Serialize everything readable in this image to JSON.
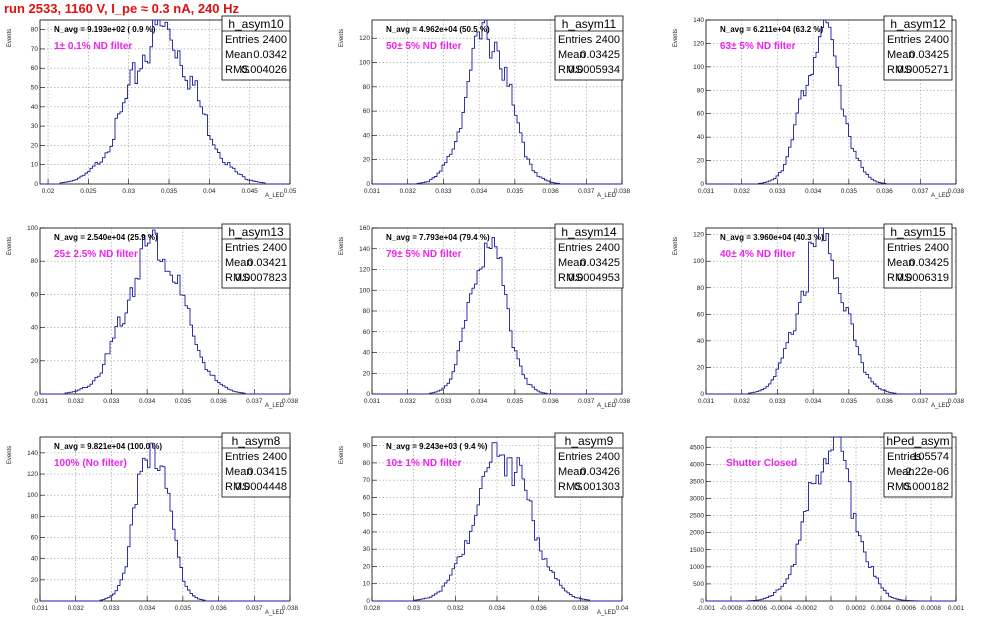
{
  "page_title": "run 2533,  1160 V, I_pe ≈ 0.3 nA, 240 Hz",
  "colors": {
    "histogram": "#1a1aa0",
    "filter_text": "#ee22ee",
    "title": "#e01010",
    "grid": "#9a9a9a"
  },
  "chart_data": [
    {
      "type": "histogram",
      "title": "h_asym10",
      "entries": "2400",
      "mean": "0.0342",
      "rms": "0.004026",
      "n_avg": "N_avg = 9.193e+02 ( 0.9 %)",
      "annotation": "1± 0.1% ND filter",
      "ylabel": "Events",
      "xlabel": "A_LED",
      "xlim": [
        0.019,
        0.05
      ],
      "ylim": [
        0,
        85
      ],
      "xticks": [
        "0.02",
        "0.025",
        "0.03",
        "0.035",
        "0.04",
        "0.045",
        "0.05"
      ],
      "xtick_values": [
        0.02,
        0.025,
        0.03,
        0.035,
        0.04,
        0.045,
        0.05
      ],
      "yticks": [
        0,
        10,
        20,
        30,
        40,
        50,
        60,
        70,
        80
      ],
      "peak_x": 0.0342,
      "peak_y": 80,
      "sigma": 0.004026
    },
    {
      "type": "histogram",
      "title": "h_asym11",
      "entries": "2400",
      "mean": "0.03425",
      "rms": "0.0005934",
      "n_avg": "N_avg = 4.962e+04 (50.5 %)",
      "annotation": "50± 5% ND filter",
      "ylabel": "Events",
      "xlabel": "A_LED",
      "xlim": [
        0.031,
        0.038
      ],
      "ylim": [
        0,
        135
      ],
      "xticks": [
        "0.031",
        "0.032",
        "0.033",
        "0.034",
        "0.035",
        "0.036",
        "0.037",
        "0.038"
      ],
      "xtick_values": [
        0.031,
        0.032,
        0.033,
        0.034,
        0.035,
        0.036,
        0.037,
        0.038
      ],
      "yticks": [
        0,
        20,
        40,
        60,
        80,
        100,
        120
      ],
      "peak_x": 0.03425,
      "peak_y": 125,
      "sigma": 0.0005934
    },
    {
      "type": "histogram",
      "title": "h_asym12",
      "entries": "2400",
      "mean": "0.03425",
      "rms": "0.0005271",
      "n_avg": "N_avg = 6.211e+04 (63.2 %)",
      "annotation": "63± 5% ND filter",
      "ylabel": "Events",
      "xlabel": "A_LED",
      "xlim": [
        0.031,
        0.038
      ],
      "ylim": [
        0,
        140
      ],
      "xticks": [
        "0.031",
        "0.032",
        "0.033",
        "0.034",
        "0.035",
        "0.036",
        "0.037",
        "0.038"
      ],
      "xtick_values": [
        0.031,
        0.032,
        0.033,
        0.034,
        0.035,
        0.036,
        0.037,
        0.038
      ],
      "yticks": [
        0,
        20,
        40,
        60,
        80,
        100,
        120,
        140
      ],
      "peak_x": 0.03425,
      "peak_y": 128,
      "sigma": 0.0005271
    },
    {
      "type": "histogram",
      "title": "h_asym13",
      "entries": "2400",
      "mean": "0.03421",
      "rms": "0.0007823",
      "n_avg": "N_avg = 2.540e+04 (25.9 %)",
      "annotation": "25± 2.5% ND filter",
      "ylabel": "Events",
      "xlabel": "A_LED",
      "xlim": [
        0.031,
        0.038
      ],
      "ylim": [
        0,
        100
      ],
      "xticks": [
        "0.031",
        "0.032",
        "0.033",
        "0.034",
        "0.035",
        "0.036",
        "0.037",
        "0.038"
      ],
      "xtick_values": [
        0.031,
        0.032,
        0.033,
        0.034,
        0.035,
        0.036,
        0.037,
        0.038
      ],
      "yticks": [
        0,
        20,
        40,
        60,
        80,
        100
      ],
      "peak_x": 0.03421,
      "peak_y": 92,
      "sigma": 0.0007823
    },
    {
      "type": "histogram",
      "title": "h_asym14",
      "entries": "2400",
      "mean": "0.03425",
      "rms": "0.0004953",
      "n_avg": "N_avg = 7.793e+04 (79.4 %)",
      "annotation": "79± 5% ND filter",
      "ylabel": "Events",
      "xlabel": "A_LED",
      "xlim": [
        0.031,
        0.038
      ],
      "ylim": [
        0,
        160
      ],
      "xticks": [
        "0.031",
        "0.032",
        "0.033",
        "0.034",
        "0.035",
        "0.036",
        "0.037",
        "0.038"
      ],
      "xtick_values": [
        0.031,
        0.032,
        0.033,
        0.034,
        0.035,
        0.036,
        0.037,
        0.038
      ],
      "yticks": [
        0,
        20,
        40,
        60,
        80,
        100,
        120,
        140,
        160
      ],
      "peak_x": 0.03425,
      "peak_y": 150,
      "sigma": 0.0004953
    },
    {
      "type": "histogram",
      "title": "h_asym15",
      "entries": "2400",
      "mean": "0.03425",
      "rms": "0.0006319",
      "n_avg": "N_avg = 3.960e+04 (40.3 %)",
      "annotation": "40± 4% ND filter",
      "ylabel": "Events",
      "xlabel": "A_LED",
      "xlim": [
        0.031,
        0.038
      ],
      "ylim": [
        0,
        125
      ],
      "xticks": [
        "0.031",
        "0.032",
        "0.033",
        "0.034",
        "0.035",
        "0.036",
        "0.037",
        "0.038"
      ],
      "xtick_values": [
        0.031,
        0.032,
        0.033,
        0.034,
        0.035,
        0.036,
        0.037,
        0.038
      ],
      "yticks": [
        0,
        20,
        40,
        60,
        80,
        100,
        120
      ],
      "peak_x": 0.03425,
      "peak_y": 115,
      "sigma": 0.0006319
    },
    {
      "type": "histogram",
      "title": "h_asym8",
      "entries": "2400",
      "mean": "0.03415",
      "rms": "0.0004448",
      "n_avg": "N_avg = 9.821e+04 (100.0 %)",
      "annotation": "100% (No filter)",
      "ylabel": "Events",
      "xlabel": "A_LED",
      "xlim": [
        0.031,
        0.038
      ],
      "ylim": [
        0,
        155
      ],
      "xticks": [
        "0.031",
        "0.032",
        "0.033",
        "0.034",
        "0.035",
        "0.036",
        "0.037",
        "0.038"
      ],
      "xtick_values": [
        0.031,
        0.032,
        0.033,
        0.034,
        0.035,
        0.036,
        0.037,
        0.038
      ],
      "yticks": [
        0,
        20,
        40,
        60,
        80,
        100,
        120,
        140
      ],
      "peak_x": 0.03415,
      "peak_y": 150,
      "sigma": 0.0004448
    },
    {
      "type": "histogram",
      "title": "h_asym9",
      "entries": "2400",
      "mean": "0.03426",
      "rms": "0.001303",
      "n_avg": "N_avg = 9.243e+03 ( 9.4 %)",
      "annotation": "10± 1% ND filter",
      "ylabel": "Events",
      "xlabel": "A_LED",
      "xlim": [
        0.028,
        0.04
      ],
      "ylim": [
        0,
        95
      ],
      "xticks": [
        "0.028",
        "0.03",
        "0.032",
        "0.034",
        "0.036",
        "0.038",
        "0.04"
      ],
      "xtick_values": [
        0.028,
        0.03,
        0.032,
        0.034,
        0.036,
        0.038,
        0.04
      ],
      "yticks": [
        0,
        10,
        20,
        30,
        40,
        50,
        60,
        70,
        80,
        90
      ],
      "peak_x": 0.03426,
      "peak_y": 88,
      "sigma": 0.001303
    },
    {
      "type": "histogram",
      "title": "hPed_asym",
      "entries": "105574",
      "mean": "-2.22e-06",
      "rms": "0.000182",
      "n_avg": "",
      "annotation": "Shutter Closed",
      "ylabel": "",
      "xlabel": "",
      "xlim": [
        -0.001,
        0.001
      ],
      "ylim": [
        0,
        4800
      ],
      "xticks": [
        "-0.001",
        "-0.0008",
        "-0.0006",
        "-0.0004",
        "-0.0002",
        "0",
        "0.0002",
        "0.0004",
        "0.0006",
        "0.0008",
        "0.001"
      ],
      "xtick_values": [
        -0.001,
        -0.0008,
        -0.0006,
        -0.0004,
        -0.0002,
        0,
        0.0002,
        0.0004,
        0.0006,
        0.0008,
        0.001
      ],
      "yticks": [
        0,
        500,
        1000,
        1500,
        2000,
        2500,
        3000,
        3500,
        4000,
        4500
      ],
      "peak_x": 0.0,
      "peak_y": 4550,
      "sigma": 0.000182
    }
  ]
}
